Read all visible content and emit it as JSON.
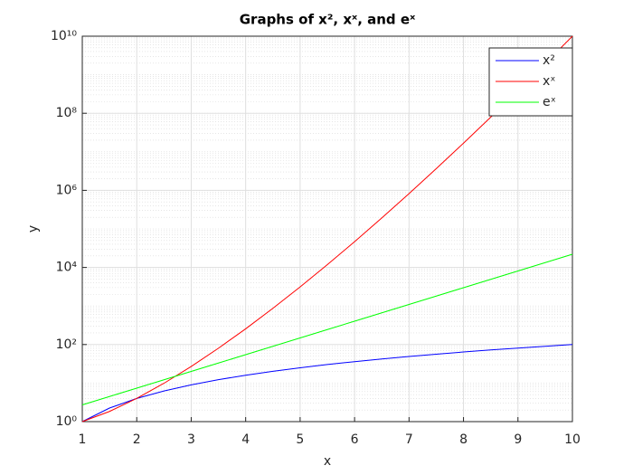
{
  "chart_data": {
    "type": "line",
    "title": "Graphs of x², xˣ, and eˣ",
    "xlabel": "x",
    "ylabel": "y",
    "x": [
      1,
      1.5,
      2,
      2.5,
      3,
      3.5,
      4,
      4.5,
      5,
      5.5,
      6,
      6.5,
      7,
      7.5,
      8,
      8.5,
      9,
      9.5,
      10
    ],
    "series": [
      {
        "name": "x²",
        "color": "#0000ff",
        "values": [
          1,
          2.25,
          4,
          6.25,
          9,
          12.25,
          16,
          20.25,
          25,
          30.25,
          36,
          42.25,
          49,
          56.25,
          64,
          72.25,
          81,
          90.25,
          100
        ]
      },
      {
        "name": "xˣ",
        "color": "#ff0000",
        "values": [
          1,
          1.837,
          4,
          9.882,
          27,
          80.21,
          256,
          869.9,
          3125,
          11803,
          46656,
          192280,
          823543,
          3655560,
          16777216,
          79444000,
          387420489,
          1942600000,
          10000000000
        ]
      },
      {
        "name": "eˣ",
        "color": "#00ff00",
        "values": [
          2.718,
          4.482,
          7.389,
          12.18,
          20.09,
          33.12,
          54.6,
          90.02,
          148.4,
          244.7,
          403.4,
          665.1,
          1096.6,
          1808,
          2981,
          4915,
          8103,
          13360,
          22026
        ]
      }
    ],
    "xlim": [
      1,
      10
    ],
    "xticks": [
      1,
      2,
      3,
      4,
      5,
      6,
      7,
      8,
      9,
      10
    ],
    "ylim": [
      1,
      10000000000
    ],
    "ylog": true,
    "yticks": [
      {
        "value": 1,
        "label": "10⁰"
      },
      {
        "value": 100,
        "label": "10²"
      },
      {
        "value": 10000,
        "label": "10⁴"
      },
      {
        "value": 1000000,
        "label": "10⁶"
      },
      {
        "value": 100000000,
        "label": "10⁸"
      },
      {
        "value": 10000000000,
        "label": "10¹⁰"
      }
    ],
    "grid": true,
    "minor_grid": true,
    "legend": "northeast"
  }
}
